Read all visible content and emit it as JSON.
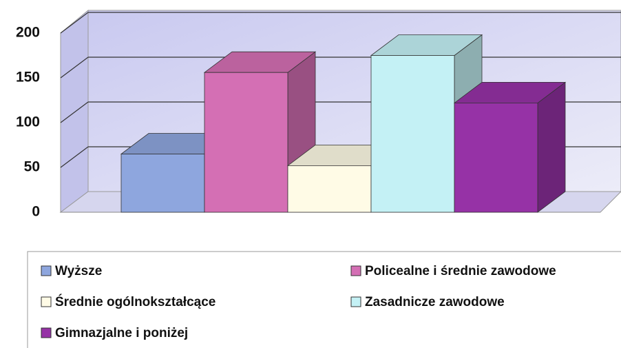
{
  "chart_data": {
    "type": "bar3d",
    "categories": [
      null
    ],
    "series": [
      {
        "name": "Wyższe",
        "color": "#8ea6de",
        "values": [
          65
        ]
      },
      {
        "name": "Policealne i średnie zawodowe",
        "color": "#d46fb4",
        "values": [
          156
        ]
      },
      {
        "name": "Średnie ogólnokształcące",
        "color": "#fffbe6",
        "values": [
          52
        ]
      },
      {
        "name": "Zasadnicze zawodowe",
        "color": "#c4f1f5",
        "values": [
          175
        ]
      },
      {
        "name": "Gimnazjalne i poniżej",
        "color": "#9632a6",
        "values": [
          122
        ]
      }
    ],
    "ylim": [
      0,
      200
    ],
    "yticks": [
      0,
      50,
      100,
      150,
      200
    ],
    "grid": true
  }
}
